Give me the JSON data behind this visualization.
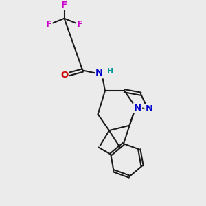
{
  "bg_color": "#ebebeb",
  "bond_color": "#1a1a1a",
  "bond_lw": 1.5,
  "fs": 9.5,
  "colors": {
    "F": "#cc00cc",
    "O": "#cc0000",
    "N": "#0000cc",
    "H": "#009999",
    "C": "#1a1a1a"
  },
  "xlim": [
    0,
    10
  ],
  "ylim": [
    0,
    10
  ]
}
